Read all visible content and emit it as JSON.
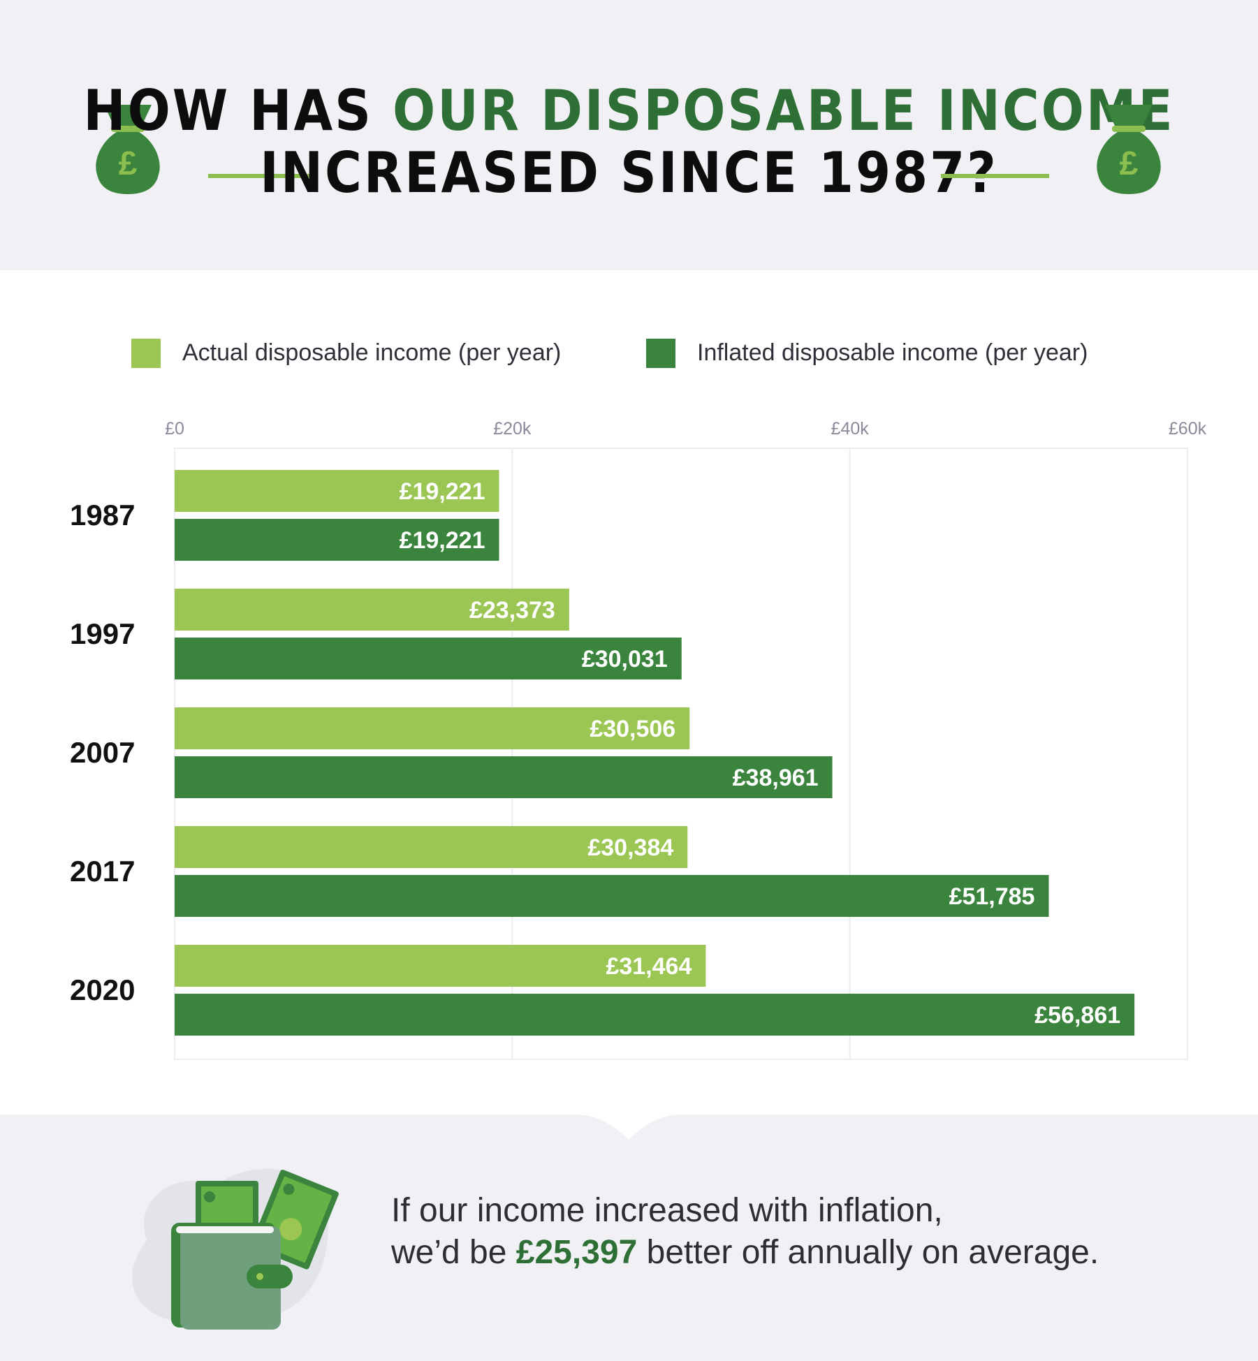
{
  "header": {
    "title_part1": "HOW HAS ",
    "title_highlight": "OUR DISPOSABLE INCOME",
    "title_line2": "INCREASED SINCE 1987?",
    "bag_symbol": "£",
    "icon_left": "money-bag-icon",
    "icon_right": "money-bag-icon"
  },
  "legend": {
    "actual_label": "Actual disposable income (per year)",
    "inflated_label": "Inflated disposable income (per year)"
  },
  "colors": {
    "actual": "#9bc653",
    "inflated": "#3a843d",
    "highlight": "#2e6f35",
    "background": "#f1f1f5",
    "accent_rule": "#8cbd4f"
  },
  "chart_data": {
    "type": "bar",
    "orientation": "horizontal",
    "categories": [
      "1987",
      "1997",
      "2007",
      "2017",
      "2020"
    ],
    "series": [
      {
        "name": "Actual disposable income (per year)",
        "values": [
          19221,
          23373,
          30506,
          30384,
          31464
        ]
      },
      {
        "name": "Inflated disposable income (per year)",
        "values": [
          19221,
          30031,
          38961,
          51785,
          56861
        ]
      }
    ],
    "data_labels": [
      [
        "£19,221",
        "£23,373",
        "£30,506",
        "£30,384",
        "£31,464"
      ],
      [
        "£19,221",
        "£30,031",
        "£38,961",
        "£51,785",
        "£56,861"
      ]
    ],
    "x_ticks": [
      0,
      20000,
      40000,
      60000
    ],
    "x_tick_labels": [
      "£0",
      "£20k",
      "£40k",
      "£60k"
    ],
    "xlim": [
      0,
      60000
    ],
    "title": "HOW HAS OUR DISPOSABLE INCOME INCREASED SINCE 1987?",
    "xlabel": "",
    "ylabel": "",
    "grid": true,
    "legend_position": "top"
  },
  "footer": {
    "line1": "If our income increased with inflation,",
    "line2_before": "we’d be ",
    "amount": "£25,397",
    "line2_after": " better off annually on average.",
    "icon": "wallet-money-icon"
  }
}
